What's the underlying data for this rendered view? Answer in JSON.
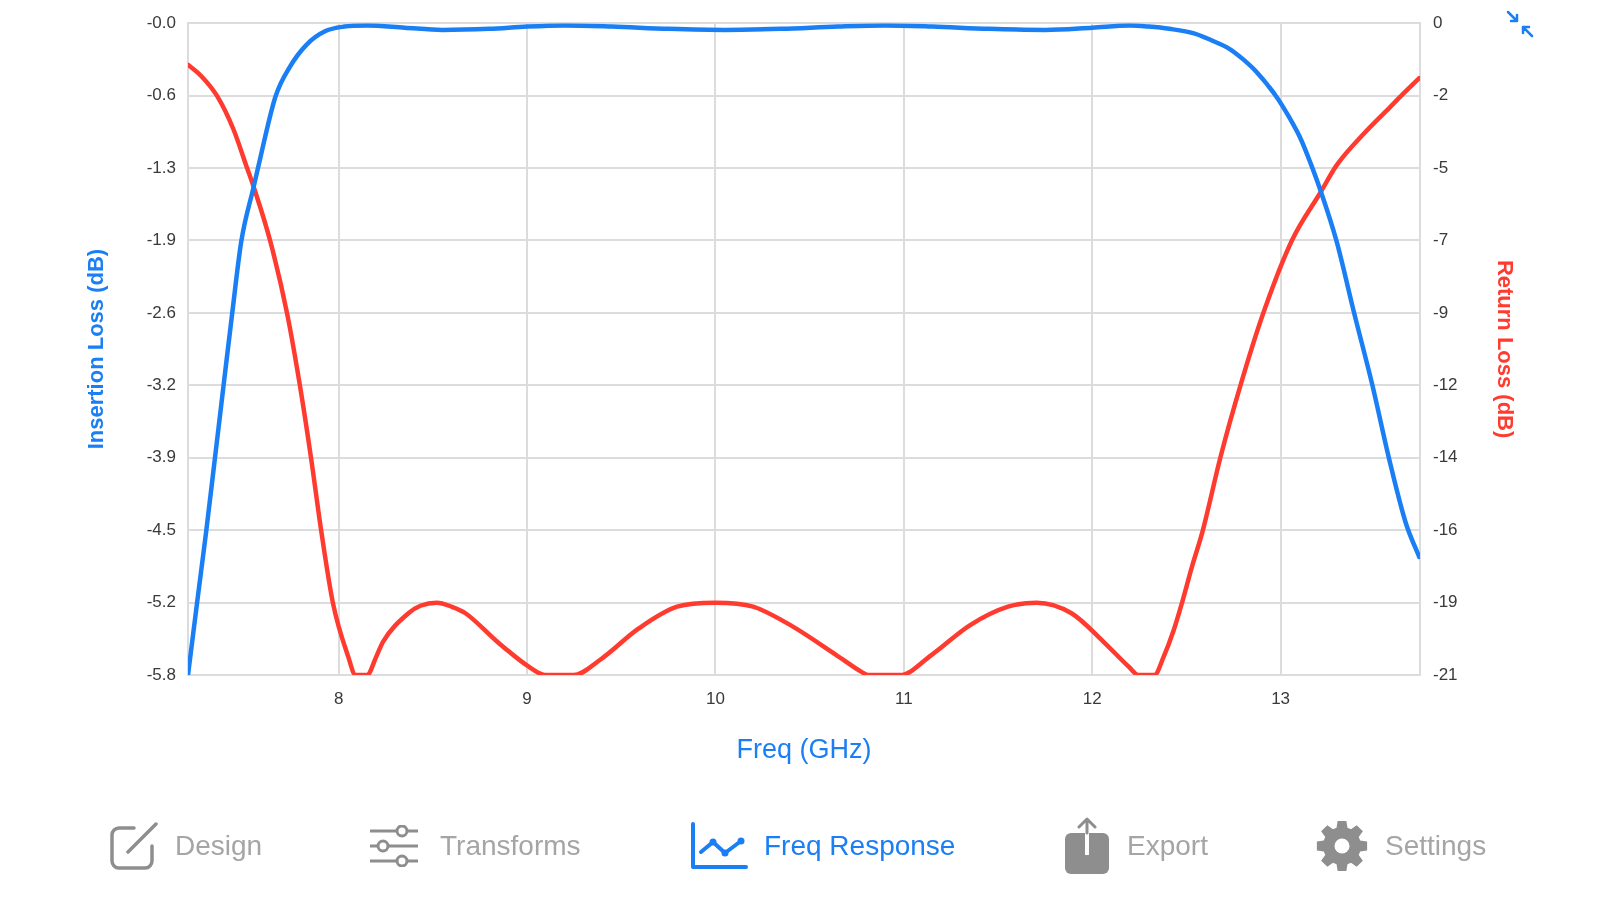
{
  "chart_data": {
    "type": "line",
    "xlabel": "Freq (GHz)",
    "ylabel": "Insertion Loss (dB)",
    "y2label": "Return Loss (dB)",
    "xlim": [
      7.2,
      13.74
    ],
    "xticks": [
      8,
      9,
      10,
      11,
      12,
      13
    ],
    "ylim": [
      -5.8,
      0
    ],
    "yticks": [
      {
        "value": 0,
        "label": "-0.0"
      },
      {
        "value": -0.644,
        "label": "-0.6"
      },
      {
        "value": -1.289,
        "label": "-1.3"
      },
      {
        "value": -1.933,
        "label": "-1.9"
      },
      {
        "value": -2.578,
        "label": "-2.6"
      },
      {
        "value": -3.222,
        "label": "-3.2"
      },
      {
        "value": -3.867,
        "label": "-3.9"
      },
      {
        "value": -4.511,
        "label": "-4.5"
      },
      {
        "value": -5.156,
        "label": "-5.2"
      },
      -5.8
    ],
    "y2lim": [
      -21,
      0
    ],
    "y2ticks": [
      0,
      {
        "value": -2.333,
        "label": "-2"
      },
      {
        "value": -4.667,
        "label": "-5"
      },
      -7,
      {
        "value": -9.333,
        "label": "-9"
      },
      {
        "value": -11.667,
        "label": "-12"
      },
      -14,
      {
        "value": -16.333,
        "label": "-16"
      },
      {
        "value": -18.667,
        "label": "-19"
      },
      -21
    ],
    "grid": true,
    "series": [
      {
        "color": "#1a7ff5",
        "x": [
          7.2,
          7.248,
          7.296,
          7.343,
          7.389,
          7.434,
          7.483,
          7.548,
          7.57,
          7.665,
          7.74,
          7.83,
          7.93,
          8.03,
          8.15,
          8.35,
          8.55,
          8.8,
          9.0,
          9.2,
          9.45,
          9.75,
          10.05,
          10.35,
          10.65,
          10.9,
          11.15,
          11.45,
          11.75,
          12.0,
          12.2,
          12.3,
          12.41,
          12.54,
          12.63,
          12.73,
          12.8,
          12.87,
          12.976,
          13.05,
          13.107,
          13.16,
          13.214,
          13.297,
          13.392,
          13.487,
          13.575,
          13.665,
          13.736
        ],
        "values": [
          -5.8,
          -5.16,
          -4.53,
          -3.87,
          -3.22,
          -2.59,
          -1.94,
          -1.46,
          -1.3,
          -0.65,
          -0.39,
          -0.19,
          -0.07,
          -0.03,
          -0.02,
          -0.04,
          -0.06,
          -0.05,
          -0.03,
          -0.02,
          -0.03,
          -0.05,
          -0.06,
          -0.05,
          -0.03,
          -0.02,
          -0.03,
          -0.05,
          -0.06,
          -0.04,
          -0.02,
          -0.03,
          -0.05,
          -0.09,
          -0.15,
          -0.23,
          -0.32,
          -0.43,
          -0.65,
          -0.85,
          -1.03,
          -1.25,
          -1.5,
          -1.94,
          -2.59,
          -3.22,
          -3.87,
          -4.45,
          -4.75
        ]
      },
      {
        "color": "#ff3b30",
        "axis": "y2",
        "x": [
          7.2,
          7.27,
          7.355,
          7.44,
          7.515,
          7.55,
          7.637,
          7.727,
          7.794,
          7.853,
          7.908,
          7.97,
          8.05,
          8.09,
          8.15,
          8.2,
          8.235,
          8.37,
          8.434,
          8.52,
          8.6,
          8.673,
          8.842,
          9.011,
          9.095,
          9.247,
          9.39,
          9.593,
          9.796,
          10.0,
          10.2,
          10.4,
          10.64,
          10.775,
          10.81,
          10.98,
          11.148,
          11.35,
          11.553,
          11.705,
          11.89,
          12.06,
          12.195,
          12.245,
          12.33,
          12.38,
          12.43,
          12.48,
          12.53,
          12.585,
          12.68,
          12.787,
          12.906,
          13.06,
          13.214,
          13.297,
          13.44,
          13.58,
          13.65,
          13.736
        ],
        "values": [
          -1.34,
          -1.7,
          -2.35,
          -3.4,
          -4.69,
          -5.3,
          -7.03,
          -9.38,
          -11.67,
          -14.0,
          -16.39,
          -18.7,
          -20.4,
          -21,
          -21,
          -20.4,
          -19.93,
          -19.01,
          -18.77,
          -18.67,
          -18.8,
          -19.01,
          -19.93,
          -20.74,
          -21,
          -21,
          -20.5,
          -19.5,
          -18.8,
          -18.67,
          -18.8,
          -19.4,
          -20.35,
          -20.9,
          -21,
          -21,
          -20.35,
          -19.4,
          -18.8,
          -18.67,
          -19.01,
          -19.93,
          -20.74,
          -21,
          -21,
          -20.4,
          -19.6,
          -18.6,
          -17.5,
          -16.39,
          -14.0,
          -11.67,
          -9.38,
          -7.0,
          -5.43,
          -4.58,
          -3.57,
          -2.71,
          -2.28,
          -1.77
        ]
      }
    ],
    "annotations": [
      "Design",
      "Transforms",
      "Freq Response",
      "Export",
      "Settings"
    ]
  }
}
